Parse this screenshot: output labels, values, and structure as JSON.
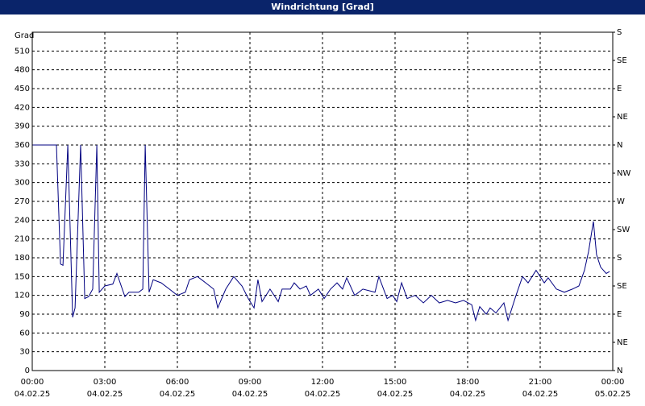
{
  "chart_data": {
    "type": "line",
    "title": "Windrichtung [Grad]",
    "y_label": "Grad",
    "x": [
      0,
      0.5,
      1.0,
      1.17,
      1.27,
      1.47,
      1.67,
      1.77,
      2.0,
      2.17,
      2.33,
      2.5,
      2.67,
      2.77,
      3.0,
      3.33,
      3.5,
      3.83,
      4.0,
      4.4,
      4.57,
      4.67,
      4.83,
      5.0,
      5.33,
      5.67,
      6.0,
      6.33,
      6.5,
      6.83,
      7.17,
      7.5,
      7.67,
      8.0,
      8.33,
      8.67,
      8.93,
      9.17,
      9.33,
      9.5,
      9.83,
      10.17,
      10.33,
      10.67,
      10.83,
      11.07,
      11.33,
      11.5,
      11.83,
      12.07,
      12.33,
      12.6,
      12.83,
      13.0,
      13.33,
      13.67,
      14.17,
      14.33,
      14.67,
      14.9,
      15.07,
      15.27,
      15.5,
      15.83,
      16.17,
      16.5,
      16.83,
      17.17,
      17.5,
      17.83,
      18.17,
      18.33,
      18.5,
      18.77,
      18.93,
      19.17,
      19.5,
      19.67,
      20.0,
      20.27,
      20.5,
      20.83,
      21.17,
      21.33,
      21.67,
      22.0,
      22.33,
      22.6,
      22.83,
      23.0,
      23.2,
      23.33,
      23.5,
      23.73,
      23.87
    ],
    "series": [
      {
        "name": "Windrichtung",
        "color": "#000080",
        "values": [
          360,
          360,
          360,
          170,
          168,
          360,
          85,
          100,
          360,
          115,
          118,
          130,
          360,
          125,
          135,
          138,
          155,
          118,
          125,
          125,
          130,
          360,
          125,
          145,
          140,
          130,
          120,
          125,
          145,
          150,
          140,
          130,
          100,
          130,
          150,
          135,
          115,
          100,
          145,
          110,
          130,
          110,
          130,
          130,
          140,
          130,
          135,
          120,
          130,
          115,
          130,
          140,
          130,
          148,
          120,
          130,
          125,
          150,
          115,
          120,
          110,
          140,
          115,
          120,
          108,
          120,
          108,
          112,
          108,
          112,
          105,
          80,
          102,
          90,
          100,
          92,
          108,
          80,
          120,
          150,
          140,
          160,
          140,
          148,
          130,
          125,
          130,
          135,
          160,
          190,
          238,
          185,
          165,
          155,
          158
        ]
      }
    ],
    "xlim": [
      0,
      24
    ],
    "xticks": [
      {
        "value": 0,
        "label": "00:00"
      },
      {
        "value": 3,
        "label": "03:00"
      },
      {
        "value": 6,
        "label": "06:00"
      },
      {
        "value": 9,
        "label": "09:00"
      },
      {
        "value": 12,
        "label": "12:00"
      },
      {
        "value": 15,
        "label": "15:00"
      },
      {
        "value": 18,
        "label": "18:00"
      },
      {
        "value": 21,
        "label": "21:00"
      },
      {
        "value": 24,
        "label": "00:00"
      }
    ],
    "xtick_dates": [
      "04.02.25",
      "04.02.25",
      "04.02.25",
      "04.02.25",
      "04.02.25",
      "04.02.25",
      "04.02.25",
      "04.02.25",
      "05.02.25"
    ],
    "ylim": [
      0,
      540
    ],
    "yticks": [
      0,
      30,
      60,
      90,
      120,
      150,
      180,
      210,
      240,
      270,
      300,
      330,
      360,
      390,
      420,
      450,
      480,
      510
    ],
    "y2lim": [
      0,
      540
    ],
    "y2ticks": [
      {
        "value": 0,
        "label": "N"
      },
      {
        "value": 45,
        "label": "NE"
      },
      {
        "value": 90,
        "label": "E"
      },
      {
        "value": 135,
        "label": "SE"
      },
      {
        "value": 180,
        "label": "S"
      },
      {
        "value": 225,
        "label": "SW"
      },
      {
        "value": 270,
        "label": "W"
      },
      {
        "value": 315,
        "label": "NW"
      },
      {
        "value": 360,
        "label": "N"
      },
      {
        "value": 405,
        "label": "NE"
      },
      {
        "value": 450,
        "label": "E"
      },
      {
        "value": 495,
        "label": "SE"
      },
      {
        "value": 540,
        "label": "S"
      }
    ],
    "grid": true
  }
}
